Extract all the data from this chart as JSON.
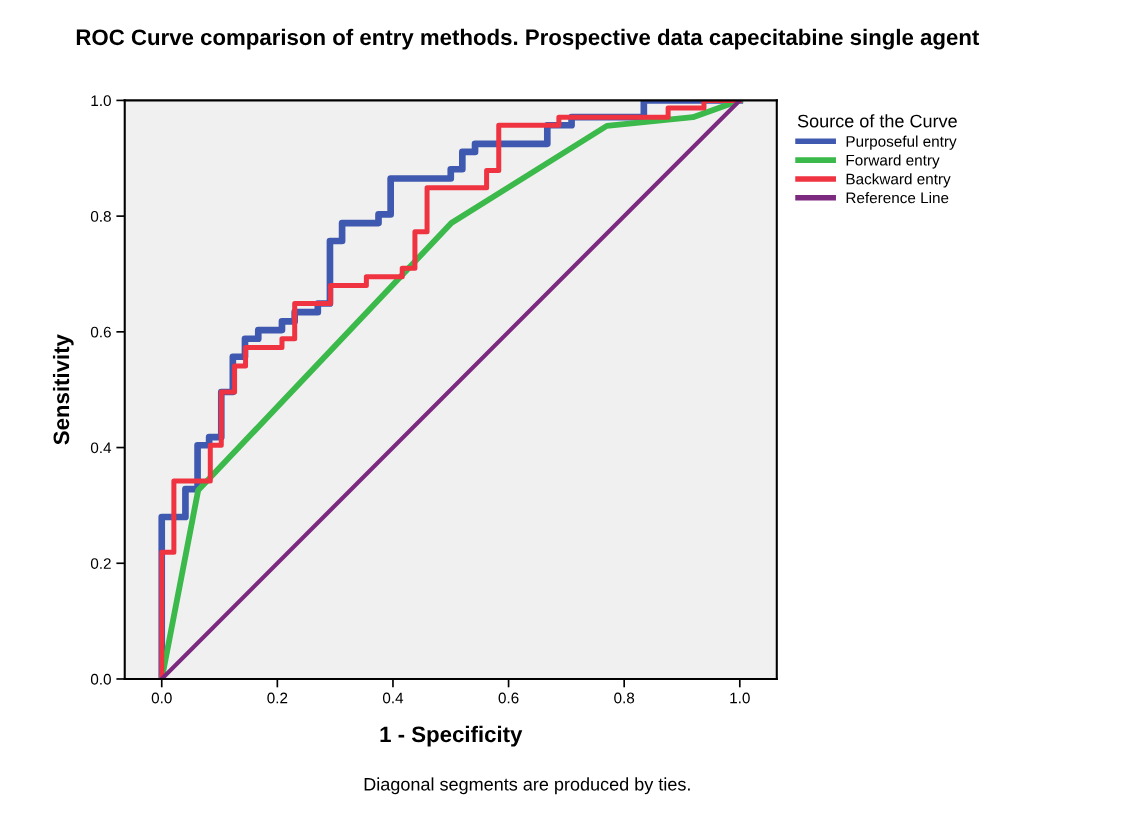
{
  "chart_data": {
    "type": "line",
    "title": "ROC Curve comparison of entry methods. Prospective data capecitabine single agent",
    "xlabel": "1 - Specificity",
    "ylabel": "Sensitivity",
    "legend_title": "Source of the Curve",
    "legend": "right",
    "grid": false,
    "marker": "none",
    "line_style": "solid",
    "xlim": [
      -0.064,
      1.064
    ],
    "ylim": [
      0,
      1
    ],
    "xticks": [
      {
        "value": 0,
        "label": "0.0"
      },
      {
        "value": 0.2,
        "label": "0.2"
      },
      {
        "value": 0.4,
        "label": "0.4"
      },
      {
        "value": 0.6,
        "label": "0.6"
      },
      {
        "value": 0.8,
        "label": "0.8"
      },
      {
        "value": 1,
        "label": "1.0"
      }
    ],
    "yticks": [
      {
        "value": 0,
        "label": "0.0"
      },
      {
        "value": 0.2,
        "label": "0.2"
      },
      {
        "value": 0.4,
        "label": "0.4"
      },
      {
        "value": 0.6,
        "label": "0.6"
      },
      {
        "value": 0.8,
        "label": "0.8"
      },
      {
        "value": 1,
        "label": "1.0"
      }
    ],
    "annotations": [
      "Diagonal segments are produced by ties."
    ],
    "series": [
      {
        "name": "Purposeful entry",
        "color": "#3f58b0",
        "x": [
          0,
          0,
          0.041,
          0.041,
          0.062,
          0.062,
          0.082,
          0.082,
          0.103,
          0.103,
          0.123,
          0.123,
          0.144,
          0.144,
          0.167,
          0.167,
          0.208,
          0.208,
          0.23,
          0.23,
          0.27,
          0.27,
          0.291,
          0.291,
          0.312,
          0.312,
          0.375,
          0.375,
          0.396,
          0.396,
          0.5,
          0.5,
          0.52,
          0.52,
          0.542,
          0.542,
          0.667,
          0.667,
          0.709,
          0.709,
          0.834,
          0.834,
          1
        ],
        "values": [
          0,
          0.28,
          0.28,
          0.328,
          0.328,
          0.404,
          0.404,
          0.418,
          0.418,
          0.496,
          0.496,
          0.557,
          0.557,
          0.588,
          0.588,
          0.603,
          0.603,
          0.618,
          0.618,
          0.634,
          0.634,
          0.649,
          0.649,
          0.757,
          0.757,
          0.788,
          0.788,
          0.803,
          0.803,
          0.865,
          0.865,
          0.881,
          0.881,
          0.911,
          0.911,
          0.925,
          0.925,
          0.957,
          0.957,
          0.971,
          0.971,
          1,
          1
        ]
      },
      {
        "name": "Forward entry",
        "color": "#3bb94a",
        "x": [
          0,
          0.063,
          0.501,
          0.77,
          0.919,
          1
        ],
        "values": [
          0,
          0.326,
          0.788,
          0.956,
          0.971,
          1
        ]
      },
      {
        "name": "Backward entry",
        "color": "#ef3340",
        "x": [
          0,
          0,
          0.021,
          0.021,
          0.084,
          0.084,
          0.103,
          0.103,
          0.126,
          0.126,
          0.145,
          0.145,
          0.208,
          0.208,
          0.23,
          0.23,
          0.292,
          0.292,
          0.354,
          0.354,
          0.416,
          0.416,
          0.438,
          0.438,
          0.459,
          0.459,
          0.562,
          0.562,
          0.583,
          0.583,
          0.687,
          0.687,
          0.876,
          0.876,
          0.938,
          0.938,
          1
        ],
        "values": [
          0,
          0.219,
          0.219,
          0.342,
          0.342,
          0.404,
          0.404,
          0.496,
          0.496,
          0.541,
          0.541,
          0.573,
          0.573,
          0.588,
          0.588,
          0.649,
          0.649,
          0.68,
          0.68,
          0.695,
          0.695,
          0.71,
          0.71,
          0.773,
          0.773,
          0.849,
          0.849,
          0.879,
          0.879,
          0.957,
          0.957,
          0.971,
          0.971,
          0.987,
          0.987,
          1,
          1
        ]
      },
      {
        "name": "Reference Line",
        "color": "#7b2a80",
        "x": [
          0,
          1
        ],
        "values": [
          0,
          1
        ]
      }
    ]
  }
}
